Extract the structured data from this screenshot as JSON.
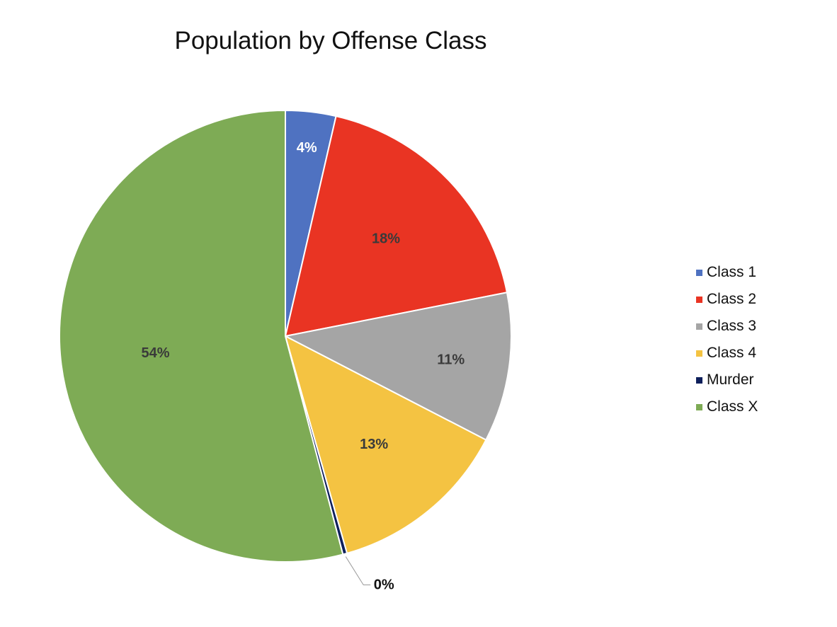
{
  "chart_data": {
    "type": "pie",
    "title": "Population by Offense Class",
    "categories": [
      "Class 1",
      "Class 2",
      "Class 3",
      "Class 4",
      "Murder",
      "Class X"
    ],
    "values": [
      3.6,
      18.3,
      10.7,
      13.0,
      0.3,
      54.1
    ],
    "labels": [
      "4%",
      "18%",
      "11%",
      "13%",
      "0%",
      "54%"
    ],
    "colors": [
      "#4F72C1",
      "#E93423",
      "#A5A5A5",
      "#F4C342",
      "#0E1F5B",
      "#7EAB55"
    ],
    "label_colors": [
      "#ffffff",
      "#3a3a3a",
      "#3a3a3a",
      "#3a3a3a",
      "#111111",
      "#3a3a3a"
    ],
    "start_angle": "12 o'clock",
    "direction": "clockwise",
    "legend_position": "right",
    "grid": false
  }
}
